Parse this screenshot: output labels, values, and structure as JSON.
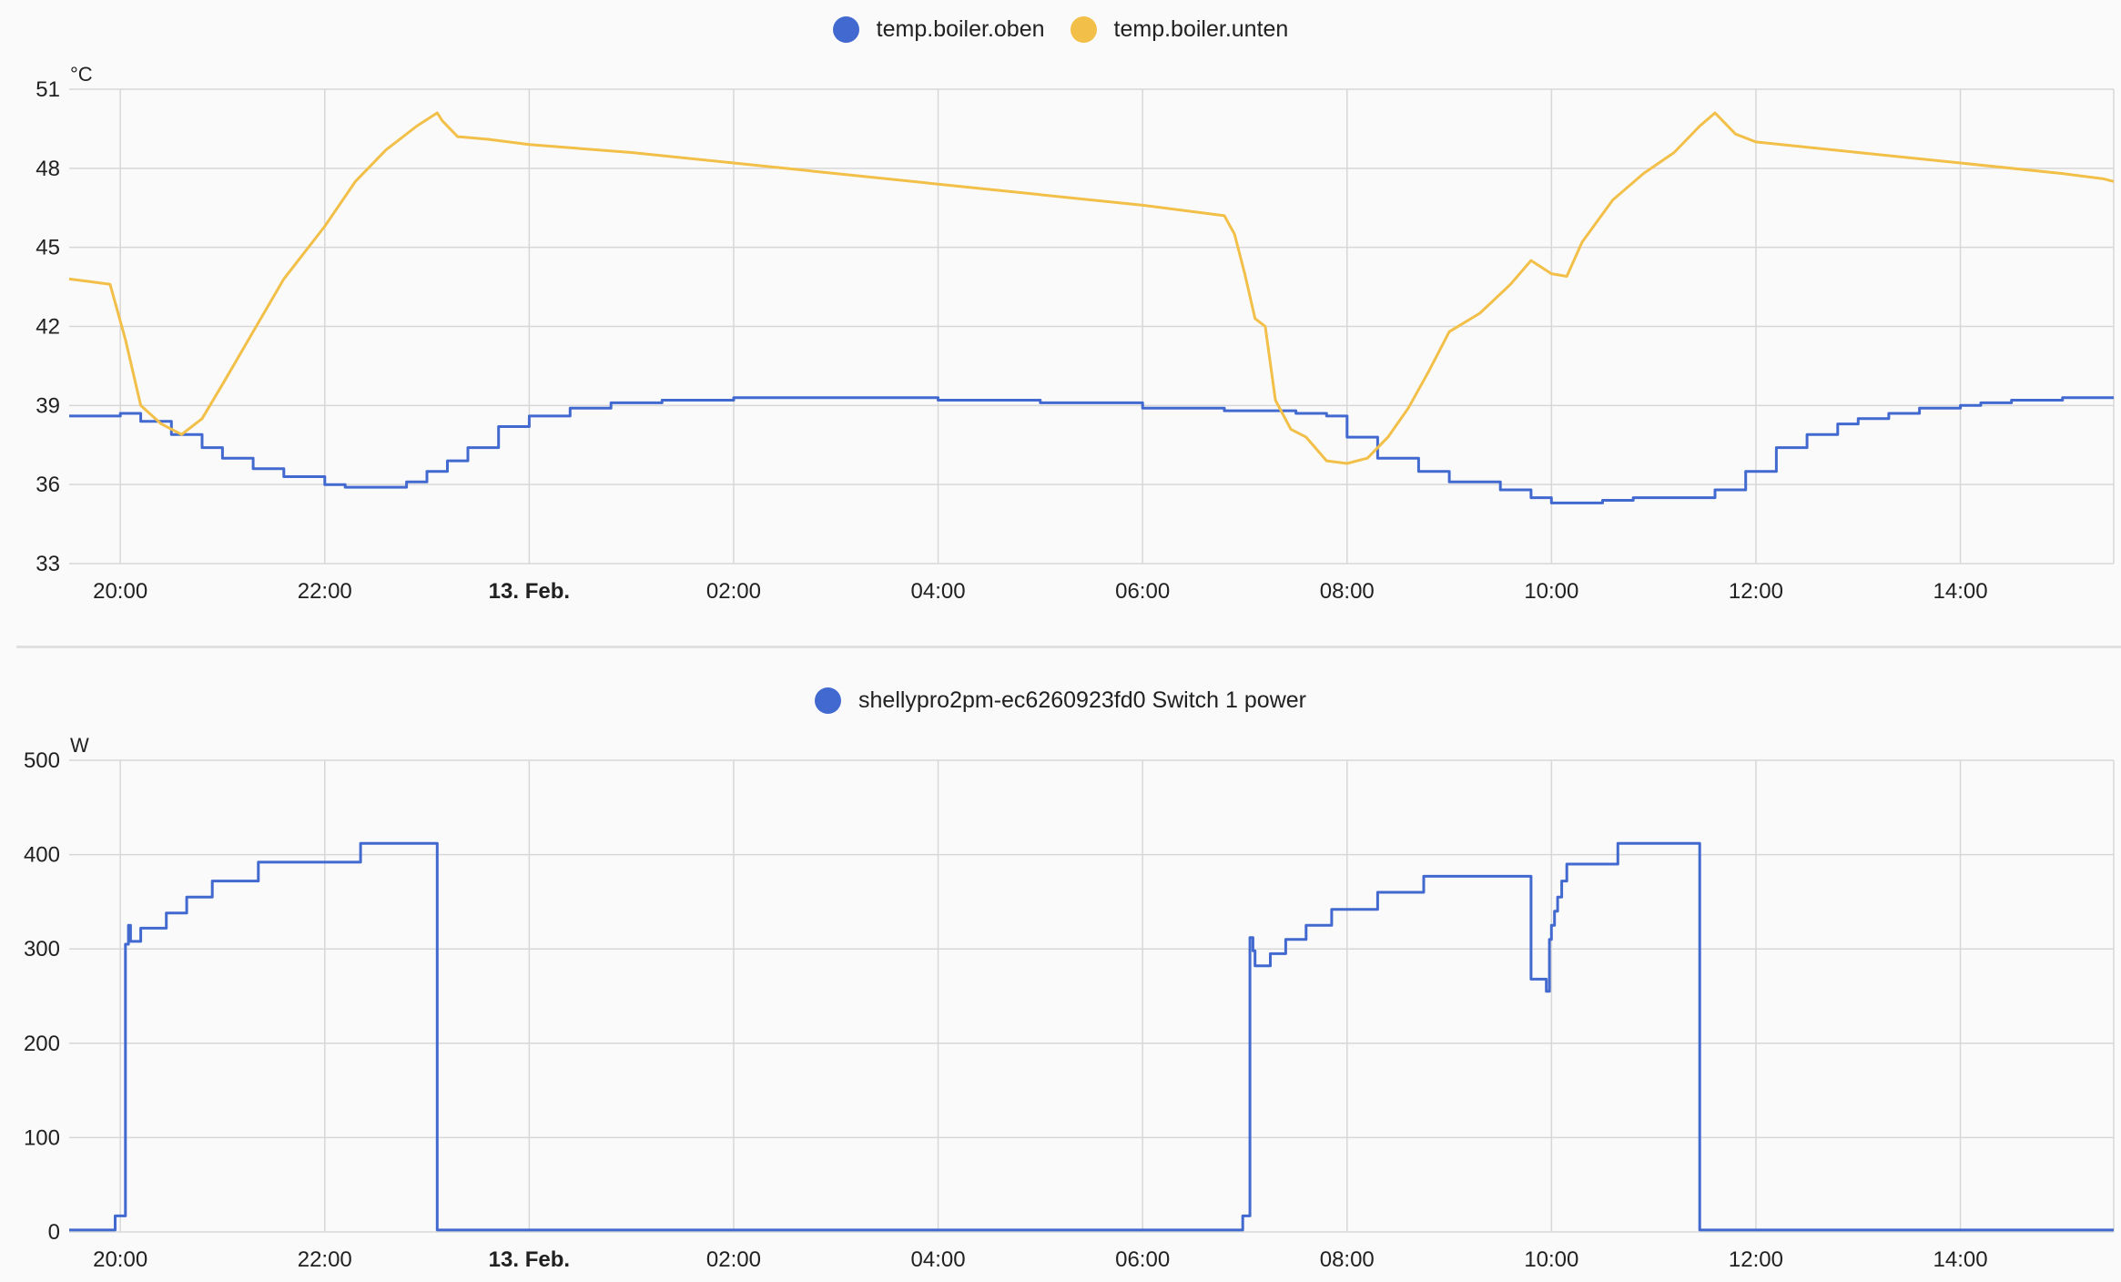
{
  "colors": {
    "blue": "#4269d0",
    "yellow": "#f2bf48",
    "grid": "#d7d7d7",
    "background": "#fafafa"
  },
  "legend_icon": "circle-dot",
  "x_labels": [
    {
      "t": 20.0,
      "label": "20:00",
      "bold": false
    },
    {
      "t": 22.0,
      "label": "22:00",
      "bold": false
    },
    {
      "t": 24.0,
      "label": "13. Feb.",
      "bold": true
    },
    {
      "t": 26.0,
      "label": "02:00",
      "bold": false
    },
    {
      "t": 28.0,
      "label": "04:00",
      "bold": false
    },
    {
      "t": 30.0,
      "label": "06:00",
      "bold": false
    },
    {
      "t": 32.0,
      "label": "08:00",
      "bold": false
    },
    {
      "t": 34.0,
      "label": "10:00",
      "bold": false
    },
    {
      "t": 36.0,
      "label": "12:00",
      "bold": false
    },
    {
      "t": 38.0,
      "label": "14:00",
      "bold": false
    }
  ],
  "chart_data": [
    {
      "type": "line",
      "unit": "°C",
      "x_unit": "hours since 12 Feb 00:00",
      "xlim": [
        19.5,
        39.5
      ],
      "ylim": [
        33,
        51
      ],
      "yticks": [
        33,
        36,
        39,
        42,
        45,
        48,
        51
      ],
      "grid": true,
      "legend_position": "top-center",
      "series": [
        {
          "name": "temp.boiler.oben",
          "color": "#4269d0",
          "step": true,
          "x": [
            19.5,
            20.0,
            20.2,
            20.5,
            20.8,
            21.0,
            21.3,
            21.6,
            22.0,
            22.2,
            22.5,
            22.8,
            23.0,
            23.2,
            23.4,
            23.7,
            24.0,
            24.4,
            24.8,
            25.3,
            26.0,
            27.0,
            28.0,
            29.0,
            30.0,
            30.8,
            31.5,
            31.8,
            32.0,
            32.3,
            32.7,
            33.0,
            33.5,
            33.8,
            34.0,
            34.5,
            34.8,
            35.0,
            35.3,
            35.6,
            35.9,
            36.2,
            36.5,
            36.8,
            37.0,
            37.3,
            37.6,
            38.0,
            38.2,
            38.5,
            39.0,
            39.5
          ],
          "y": [
            38.6,
            38.7,
            38.4,
            37.9,
            37.4,
            37.0,
            36.6,
            36.3,
            36.0,
            35.9,
            35.9,
            36.1,
            36.5,
            36.9,
            37.4,
            38.2,
            38.6,
            38.9,
            39.1,
            39.2,
            39.3,
            39.3,
            39.2,
            39.1,
            38.9,
            38.8,
            38.7,
            38.6,
            37.8,
            37.0,
            36.5,
            36.1,
            35.8,
            35.5,
            35.3,
            35.4,
            35.5,
            35.5,
            35.5,
            35.8,
            36.5,
            37.4,
            37.9,
            38.3,
            38.5,
            38.7,
            38.9,
            39.0,
            39.1,
            39.2,
            39.3,
            39.3
          ]
        },
        {
          "name": "temp.boiler.unten",
          "color": "#f2bf48",
          "step": false,
          "x": [
            19.5,
            19.7,
            19.9,
            20.05,
            20.2,
            20.4,
            20.6,
            20.8,
            21.0,
            21.3,
            21.6,
            22.0,
            22.3,
            22.6,
            22.9,
            23.1,
            23.15,
            23.3,
            23.6,
            24.0,
            25.0,
            26.0,
            27.0,
            28.0,
            29.0,
            29.5,
            30.0,
            30.4,
            30.8,
            30.9,
            31.0,
            31.1,
            31.2,
            31.3,
            31.45,
            31.6,
            31.8,
            32.0,
            32.2,
            32.4,
            32.6,
            32.8,
            33.0,
            33.3,
            33.6,
            33.8,
            34.0,
            34.15,
            34.3,
            34.6,
            34.9,
            35.2,
            35.45,
            35.6,
            35.8,
            36.0,
            37.0,
            38.0,
            39.0,
            39.4,
            39.5
          ],
          "y": [
            43.8,
            43.7,
            43.6,
            41.5,
            39.0,
            38.3,
            37.9,
            38.5,
            39.8,
            41.8,
            43.8,
            45.8,
            47.5,
            48.7,
            49.6,
            50.1,
            49.8,
            49.2,
            49.1,
            48.9,
            48.6,
            48.2,
            47.8,
            47.4,
            47.0,
            46.8,
            46.6,
            46.4,
            46.2,
            45.5,
            44.0,
            42.3,
            42.0,
            39.2,
            38.1,
            37.8,
            36.9,
            36.8,
            37.0,
            37.8,
            38.9,
            40.3,
            41.8,
            42.5,
            43.6,
            44.5,
            44.0,
            43.9,
            45.2,
            46.8,
            47.8,
            48.6,
            49.6,
            50.1,
            49.3,
            49.0,
            48.6,
            48.2,
            47.8,
            47.6,
            47.5
          ]
        }
      ]
    },
    {
      "type": "line",
      "unit": "W",
      "x_unit": "hours since 12 Feb 00:00",
      "xlim": [
        19.5,
        39.5
      ],
      "ylim": [
        0,
        500
      ],
      "yticks": [
        0,
        100,
        200,
        300,
        400,
        500
      ],
      "grid": true,
      "legend_position": "top-center",
      "series": [
        {
          "name": "shellypro2pm-ec6260923fd0 Switch 1 power",
          "color": "#4269d0",
          "step": true,
          "x": [
            19.5,
            19.95,
            20.05,
            20.08,
            20.1,
            20.15,
            20.2,
            20.45,
            20.65,
            20.9,
            21.35,
            22.35,
            23.1,
            30.98,
            31.05,
            31.08,
            31.1,
            31.15,
            31.25,
            31.4,
            31.6,
            31.85,
            32.3,
            32.75,
            33.2,
            33.8,
            33.95,
            33.98,
            34.0,
            34.03,
            34.06,
            34.1,
            34.15,
            34.3,
            34.65,
            35.45,
            39.5
          ],
          "y": [
            2,
            17,
            305,
            325,
            308,
            308,
            322,
            338,
            355,
            372,
            392,
            412,
            2,
            17,
            312,
            298,
            282,
            282,
            295,
            310,
            325,
            342,
            360,
            377,
            377,
            268,
            255,
            310,
            325,
            340,
            355,
            372,
            390,
            390,
            412,
            2,
            2
          ]
        }
      ]
    }
  ]
}
